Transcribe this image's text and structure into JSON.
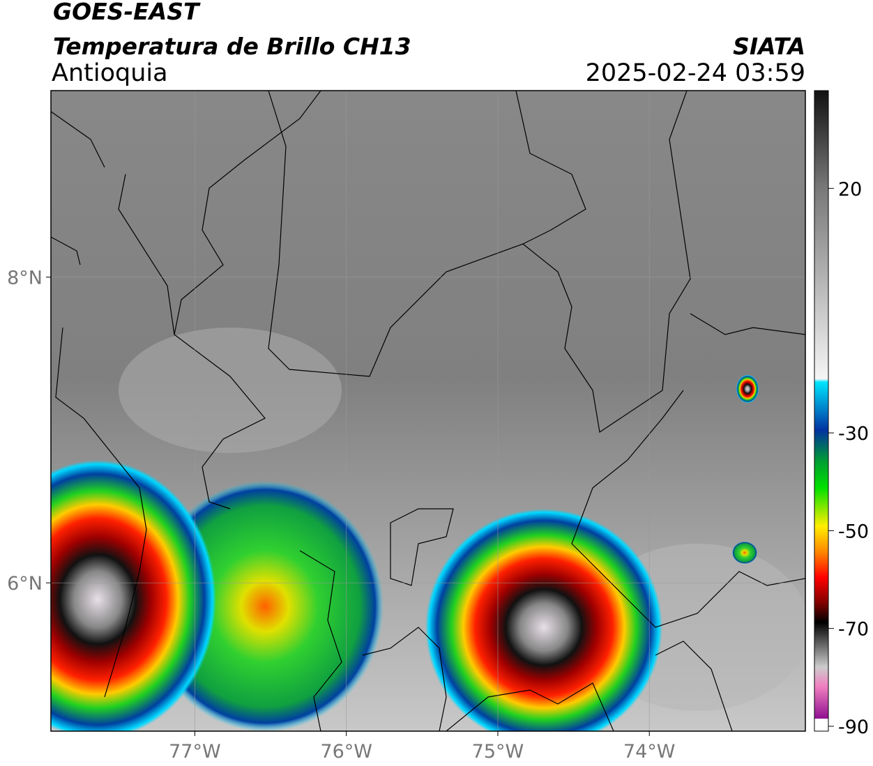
{
  "header": {
    "title": "GOES-EAST",
    "subtitle": "Temperatura de Brillo CH13",
    "region": "Antioquia",
    "source": "SIATA",
    "datetime": "2025-02-24 03:59"
  },
  "map": {
    "xlim": [
      -77.95,
      -72.97
    ],
    "ylim": [
      5.03,
      9.22
    ],
    "xticks": [
      {
        "value": -77,
        "label": "77°W"
      },
      {
        "value": -76,
        "label": "76°W"
      },
      {
        "value": -75,
        "label": "75°W"
      },
      {
        "value": -74,
        "label": "74°W"
      }
    ],
    "yticks": [
      {
        "value": 8,
        "label": "8°N"
      },
      {
        "value": 6,
        "label": "6°N"
      }
    ],
    "grid": true
  },
  "colorbar": {
    "lim": [
      -91,
      40
    ],
    "ticks": [
      20,
      -30,
      -50,
      -70,
      -90
    ]
  }
}
